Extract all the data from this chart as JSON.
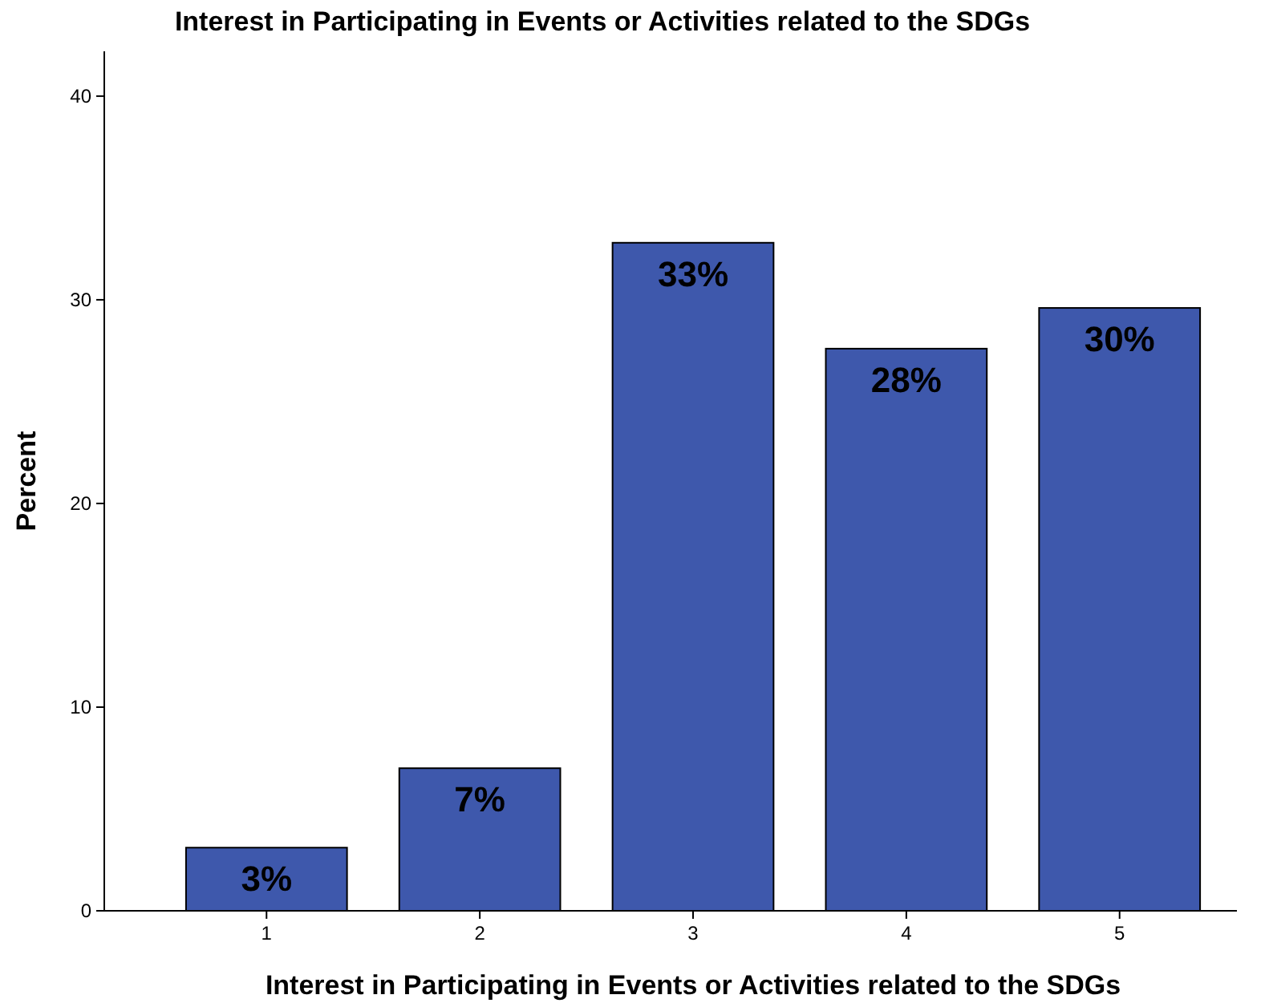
{
  "chart_data": {
    "type": "bar",
    "title": "Interest in Participating in Events or Activities related to the SDGs",
    "xlabel": "Interest in Participating in Events or Activities related to the SDGs",
    "ylabel": "Percent",
    "categories": [
      "1",
      "2",
      "3",
      "4",
      "5"
    ],
    "values": [
      3.1,
      7.0,
      32.8,
      27.6,
      29.6
    ],
    "value_labels": [
      "3%",
      "7%",
      "33%",
      "28%",
      "30%"
    ],
    "color": "#3e58ac",
    "ylim": [
      0,
      42.2
    ],
    "yticks": [
      0,
      10,
      20,
      30,
      40
    ],
    "grid": false
  }
}
